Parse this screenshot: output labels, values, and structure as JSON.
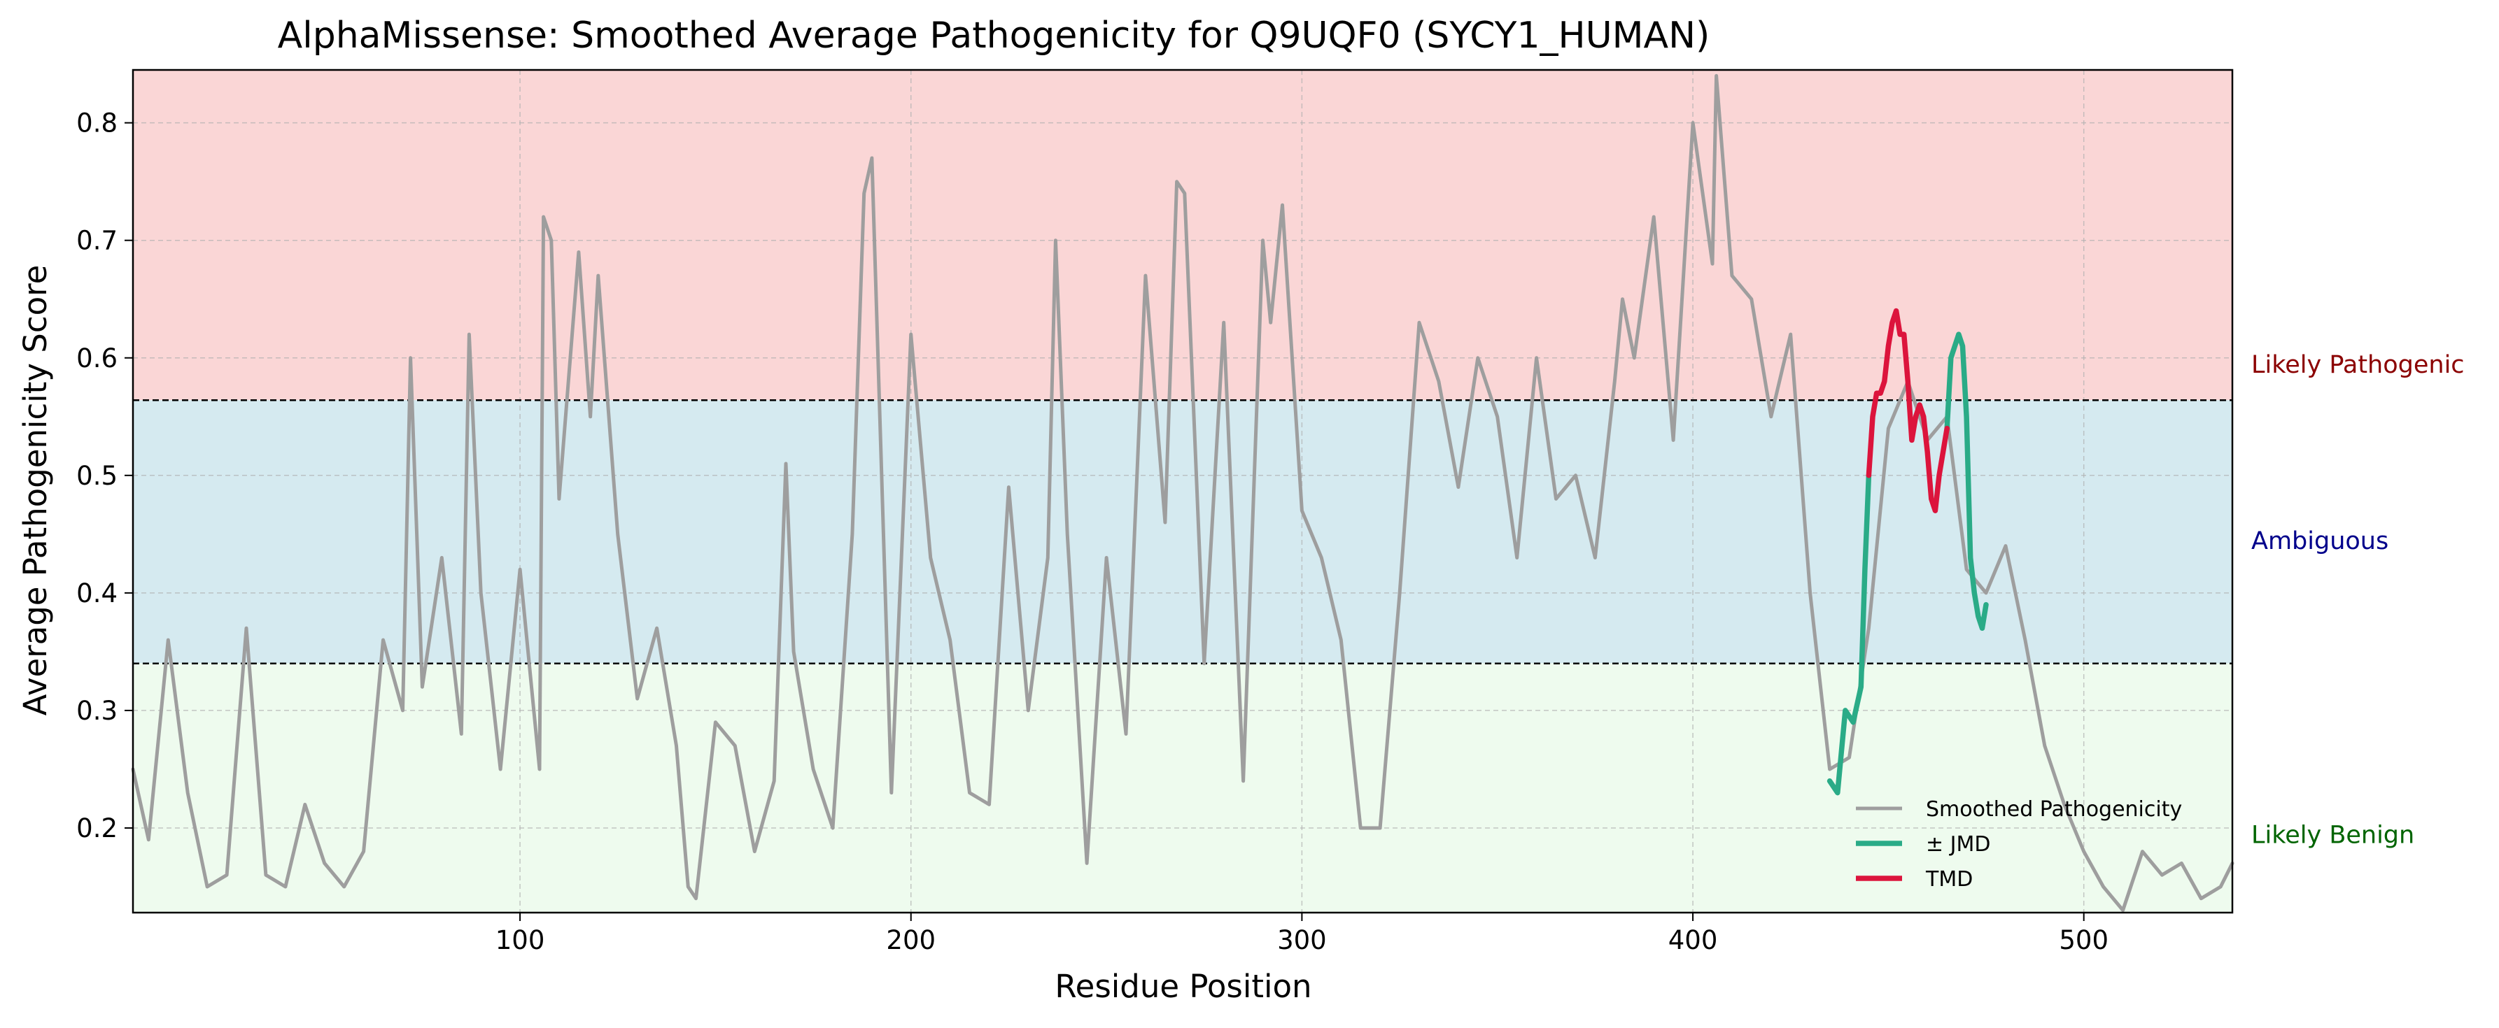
{
  "chart_data": {
    "type": "line",
    "title": "AlphaMissense: Smoothed Average Pathogenicity for Q9UQF0 (SYCY1_HUMAN)",
    "xlabel": "Residue Position",
    "ylabel": "Average Pathogenicity Score",
    "xlim": [
      1,
      538
    ],
    "ylim": [
      0.128,
      0.845
    ],
    "xticks": [
      100,
      200,
      300,
      400,
      500
    ],
    "yticks": [
      0.2,
      0.3,
      0.4,
      0.5,
      0.6,
      0.7,
      0.8
    ],
    "grid": true,
    "legend_position": "lower-right",
    "thresholds": [
      0.34,
      0.564
    ],
    "regions": [
      {
        "label": "Likely Pathogenic",
        "from": 0.564,
        "to": 0.845,
        "fill": "#fad6d6",
        "label_color": "#8b0000"
      },
      {
        "label": "Ambiguous",
        "from": 0.34,
        "to": 0.564,
        "fill": "#d5eaf0",
        "label_color": "#00008b"
      },
      {
        "label": "Likely Benign",
        "from": 0.128,
        "to": 0.34,
        "fill": "#eefbee",
        "label_color": "#006400"
      }
    ],
    "series": [
      {
        "name": "Smoothed Pathogenicity",
        "color": "#9e9e9e",
        "x": [
          1,
          5,
          10,
          15,
          20,
          25,
          30,
          35,
          40,
          45,
          50,
          55,
          60,
          65,
          70,
          72,
          75,
          80,
          85,
          87,
          90,
          95,
          100,
          105,
          106,
          108,
          110,
          115,
          118,
          120,
          125,
          130,
          135,
          140,
          143,
          145,
          150,
          155,
          160,
          165,
          168,
          170,
          175,
          180,
          185,
          188,
          190,
          195,
          200,
          205,
          210,
          215,
          220,
          225,
          230,
          235,
          237,
          240,
          245,
          250,
          255,
          260,
          265,
          268,
          270,
          275,
          280,
          285,
          290,
          292,
          295,
          300,
          305,
          310,
          315,
          320,
          325,
          330,
          335,
          340,
          345,
          350,
          355,
          360,
          365,
          370,
          375,
          380,
          382,
          385,
          390,
          395,
          400,
          405,
          406,
          410,
          415,
          420,
          425,
          430,
          435,
          440,
          445,
          450,
          455,
          460,
          465,
          470,
          475,
          480,
          485,
          490,
          495,
          500,
          505,
          510,
          515,
          520,
          525,
          530,
          535,
          538
        ],
        "values": [
          0.25,
          0.19,
          0.36,
          0.23,
          0.15,
          0.16,
          0.37,
          0.16,
          0.15,
          0.22,
          0.17,
          0.15,
          0.18,
          0.36,
          0.3,
          0.6,
          0.32,
          0.43,
          0.28,
          0.62,
          0.4,
          0.25,
          0.42,
          0.25,
          0.72,
          0.7,
          0.48,
          0.69,
          0.55,
          0.67,
          0.45,
          0.31,
          0.37,
          0.27,
          0.15,
          0.14,
          0.29,
          0.27,
          0.18,
          0.24,
          0.51,
          0.35,
          0.25,
          0.2,
          0.45,
          0.74,
          0.77,
          0.23,
          0.62,
          0.43,
          0.36,
          0.23,
          0.22,
          0.49,
          0.3,
          0.43,
          0.7,
          0.45,
          0.17,
          0.43,
          0.28,
          0.67,
          0.46,
          0.75,
          0.74,
          0.34,
          0.63,
          0.24,
          0.7,
          0.63,
          0.73,
          0.47,
          0.43,
          0.36,
          0.2,
          0.2,
          0.4,
          0.63,
          0.58,
          0.49,
          0.6,
          0.55,
          0.43,
          0.6,
          0.48,
          0.5,
          0.43,
          0.58,
          0.65,
          0.6,
          0.72,
          0.53,
          0.8,
          0.68,
          0.84,
          0.67,
          0.65,
          0.55,
          0.62,
          0.4,
          0.25,
          0.26,
          0.37,
          0.54,
          0.58,
          0.53,
          0.55,
          0.42,
          0.4,
          0.44,
          0.36,
          0.27,
          0.22,
          0.18,
          0.15,
          0.13,
          0.18,
          0.16,
          0.17,
          0.14,
          0.15,
          0.17
        ]
      },
      {
        "name": "± JMD",
        "color": "#2aab87",
        "segments": [
          {
            "x": [
              435,
              437,
              439,
              441,
              443,
              444,
              445
            ],
            "values": [
              0.24,
              0.23,
              0.3,
              0.29,
              0.32,
              0.42,
              0.5
            ]
          },
          {
            "x": [
              465,
              466,
              468,
              469,
              470,
              471,
              472,
              473,
              474,
              475
            ],
            "values": [
              0.54,
              0.6,
              0.62,
              0.61,
              0.55,
              0.43,
              0.4,
              0.38,
              0.37,
              0.39
            ]
          }
        ]
      },
      {
        "name": "TMD",
        "color": "#dc143c",
        "x": [
          445,
          446,
          447,
          448,
          449,
          450,
          451,
          452,
          453,
          454,
          455,
          456,
          457,
          458,
          459,
          460,
          461,
          462,
          463,
          464,
          465
        ],
        "values": [
          0.5,
          0.55,
          0.57,
          0.57,
          0.58,
          0.61,
          0.63,
          0.64,
          0.62,
          0.62,
          0.58,
          0.53,
          0.55,
          0.56,
          0.55,
          0.52,
          0.48,
          0.47,
          0.5,
          0.52,
          0.54
        ]
      }
    ]
  }
}
